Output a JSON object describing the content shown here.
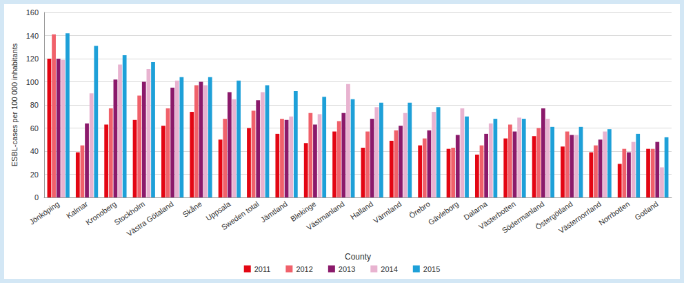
{
  "chart_data": {
    "type": "bar",
    "xlabel": "County",
    "ylabel": "ESBL-cases per 100 000 inhabitants",
    "categories": [
      "Jönköping",
      "Kalmar",
      "Kronoberg",
      "Stockholm",
      "Västra Götaland",
      "Skåne",
      "Uppsala",
      "Sweden total",
      "Jämtland",
      "Blekinge",
      "Västmanland",
      "Halland",
      "Värmland",
      "Örebro",
      "Gävleborg",
      "Dalarna",
      "Västerbotten",
      "Södermanland",
      "Östergötland",
      "Västernorrland",
      "Norrbotten",
      "Gotland"
    ],
    "series": [
      {
        "name": "2011",
        "color": "#e30613",
        "values": [
          120,
          39,
          63,
          67,
          62,
          74,
          50,
          60,
          55,
          47,
          57,
          43,
          49,
          45,
          42,
          37,
          51,
          53,
          44,
          39,
          29,
          42
        ]
      },
      {
        "name": "2012",
        "color": "#f0616b",
        "values": [
          141,
          45,
          77,
          88,
          77,
          97,
          68,
          75,
          68,
          73,
          66,
          57,
          58,
          51,
          43,
          45,
          63,
          60,
          57,
          45,
          42,
          42
        ]
      },
      {
        "name": "2013",
        "color": "#8b1a6b",
        "values": [
          120,
          64,
          102,
          100,
          95,
          100,
          91,
          84,
          67,
          63,
          73,
          68,
          62,
          58,
          54,
          55,
          57,
          77,
          54,
          50,
          39,
          48
        ]
      },
      {
        "name": "2014",
        "color": "#e8b3d0",
        "values": [
          119,
          90,
          115,
          111,
          101,
          97,
          85,
          91,
          70,
          72,
          98,
          78,
          73,
          74,
          77,
          64,
          69,
          68,
          54,
          57,
          48,
          26
        ]
      },
      {
        "name": "2015",
        "color": "#1ea0d8",
        "values": [
          142,
          131,
          123,
          117,
          104,
          104,
          101,
          97,
          92,
          87,
          85,
          82,
          82,
          78,
          70,
          68,
          68,
          61,
          61,
          59,
          55,
          52
        ]
      }
    ],
    "ylim": [
      0,
      160
    ],
    "yticks": [
      0,
      20,
      40,
      60,
      80,
      100,
      120,
      140,
      160
    ],
    "grid": true,
    "legend": "bottom"
  }
}
